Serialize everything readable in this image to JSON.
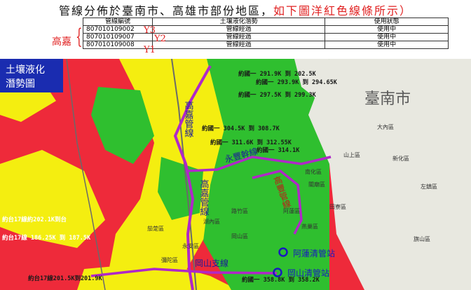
{
  "header": {
    "title_black": "管線分佈於臺南市、高雄市部份地區，",
    "title_red": "如下圖洋紅色線條所示）"
  },
  "table": {
    "columns": [
      "管線編號",
      "土壤液化潛勢",
      "使用狀態"
    ],
    "rows": [
      {
        "id": "807010109002",
        "potential": "管線經過",
        "status": "使用中",
        "tag": "Y3"
      },
      {
        "id": "807010109007",
        "potential": "管線經過",
        "status": "使用中",
        "tag": "Y2"
      },
      {
        "id": "807010109008",
        "potential": "管線經過",
        "status": "使用中",
        "tag": "Y1"
      }
    ],
    "group_label": "高嘉"
  },
  "map": {
    "legend_title_1": "土壤液化",
    "legend_title_2": "潛勢圖",
    "city_label": "臺南市",
    "pipelines": [
      {
        "label": "高嘉管線",
        "color": "#b028c8"
      },
      {
        "label": "永豐幹線",
        "color": "#b028c8"
      },
      {
        "label": "高豐管線",
        "color": "#b028c8"
      },
      {
        "label": "岡山支線",
        "color": "#b028c8"
      }
    ],
    "stations": [
      "阿蓮清管站",
      "岡山清管站"
    ],
    "mileages": [
      "約國一 291.9K 到 202.5K",
      "約國一 293.9K 到 294.65K",
      "約國一 297.5K 到 299.3K",
      "約國一 304.5K 到 308.7K",
      "約國一 311.6K 到 312.55K",
      "約國一 314.1K",
      "約台17線約202.1K到台",
      "約台17線 186.25K 到 187.5K",
      "約台17線201.5K到201.9K",
      "約國一 358.8K 到 358.2K"
    ],
    "districts": [
      "大內區",
      "山上區",
      "新化區",
      "左鎮區",
      "南化區",
      "關廟區",
      "阿蓮區",
      "田寮區",
      "路竹區",
      "湖內區",
      "茄萣區",
      "岡山區",
      "燕巢區",
      "永安區",
      "彌陀區",
      "旗山區"
    ],
    "colors": {
      "high": "#ee2a3a",
      "medium": "#f4ee10",
      "low": "#2fbf2f",
      "none": "#e8e8e0",
      "pipeline": "#b028c8",
      "station": "#1818c0"
    }
  }
}
